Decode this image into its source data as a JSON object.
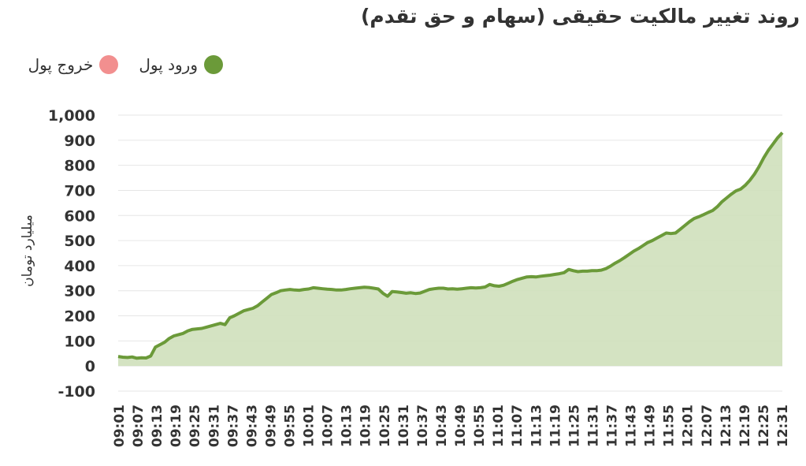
{
  "title": "روند تغییر مالکیت حقیقی (سهام و حق تقدم)",
  "legend": [
    {
      "label": "ورود پول",
      "color": "#6b9a39"
    },
    {
      "label": "خروج پول",
      "color": "#f28f8f"
    }
  ],
  "colors": {
    "line": "#6b9a39",
    "area": "#cfe0bb",
    "gridline": "#e6e6e6"
  },
  "chart_data": {
    "type": "area",
    "ylabel": "میلیارد تومان",
    "ylim": [
      -100,
      1000
    ],
    "yticks": [
      "-100",
      "0",
      "100",
      "200",
      "300",
      "400",
      "500",
      "600",
      "700",
      "800",
      "900",
      "1,000"
    ],
    "ytick_values": [
      -100,
      0,
      100,
      200,
      300,
      400,
      500,
      600,
      700,
      800,
      900,
      1000
    ],
    "xticks": [
      "09:01",
      "09:07",
      "09:13",
      "09:19",
      "09:25",
      "09:31",
      "09:37",
      "09:43",
      "09:49",
      "09:55",
      "10:01",
      "10:07",
      "10:13",
      "10:19",
      "10:25",
      "10:31",
      "10:37",
      "10:43",
      "10:49",
      "10:55",
      "11:01",
      "11:07",
      "11:13",
      "11:19",
      "11:25",
      "11:31",
      "11:37",
      "11:43",
      "11:49",
      "11:55",
      "12:01",
      "12:07",
      "12:13",
      "12:19",
      "12:25",
      "12:31"
    ],
    "series": [
      {
        "values": [
          [
            0,
            38
          ],
          [
            1,
            35
          ],
          [
            2,
            34
          ],
          [
            3,
            36
          ],
          [
            4,
            31
          ],
          [
            5,
            33
          ],
          [
            6,
            32
          ],
          [
            7,
            40
          ],
          [
            8,
            75
          ],
          [
            9,
            85
          ],
          [
            10,
            95
          ],
          [
            11,
            110
          ],
          [
            12,
            120
          ],
          [
            13,
            125
          ],
          [
            14,
            130
          ],
          [
            15,
            140
          ],
          [
            16,
            146
          ],
          [
            17,
            148
          ],
          [
            18,
            150
          ],
          [
            19,
            155
          ],
          [
            20,
            160
          ],
          [
            21,
            165
          ],
          [
            22,
            170
          ],
          [
            23,
            165
          ],
          [
            24,
            192
          ],
          [
            25,
            200
          ],
          [
            26,
            210
          ],
          [
            27,
            220
          ],
          [
            28,
            225
          ],
          [
            29,
            230
          ],
          [
            30,
            240
          ],
          [
            31,
            255
          ],
          [
            32,
            270
          ],
          [
            33,
            285
          ],
          [
            34,
            292
          ],
          [
            35,
            300
          ],
          [
            36,
            303
          ],
          [
            37,
            305
          ],
          [
            38,
            303
          ],
          [
            39,
            302
          ],
          [
            40,
            305
          ],
          [
            41,
            307
          ],
          [
            42,
            312
          ],
          [
            43,
            310
          ],
          [
            44,
            308
          ],
          [
            45,
            306
          ],
          [
            46,
            305
          ],
          [
            47,
            303
          ],
          [
            48,
            303
          ],
          [
            49,
            305
          ],
          [
            50,
            308
          ],
          [
            51,
            310
          ],
          [
            52,
            312
          ],
          [
            53,
            314
          ],
          [
            54,
            313
          ],
          [
            55,
            310
          ],
          [
            56,
            307
          ],
          [
            57,
            290
          ],
          [
            58,
            278
          ],
          [
            59,
            297
          ],
          [
            60,
            295
          ],
          [
            61,
            293
          ],
          [
            62,
            290
          ],
          [
            63,
            292
          ],
          [
            64,
            289
          ],
          [
            65,
            291
          ],
          [
            66,
            298
          ],
          [
            67,
            305
          ],
          [
            68,
            308
          ],
          [
            69,
            310
          ],
          [
            70,
            310
          ],
          [
            71,
            307
          ],
          [
            72,
            308
          ],
          [
            73,
            306
          ],
          [
            74,
            308
          ],
          [
            75,
            310
          ],
          [
            76,
            312
          ],
          [
            77,
            311
          ],
          [
            78,
            312
          ],
          [
            79,
            315
          ],
          [
            80,
            325
          ],
          [
            81,
            320
          ],
          [
            82,
            318
          ],
          [
            83,
            322
          ],
          [
            84,
            330
          ],
          [
            85,
            338
          ],
          [
            86,
            345
          ],
          [
            87,
            350
          ],
          [
            88,
            355
          ],
          [
            89,
            356
          ],
          [
            90,
            355
          ],
          [
            91,
            358
          ],
          [
            92,
            360
          ],
          [
            93,
            362
          ],
          [
            94,
            365
          ],
          [
            95,
            368
          ],
          [
            96,
            372
          ],
          [
            97,
            385
          ],
          [
            98,
            380
          ],
          [
            99,
            376
          ],
          [
            100,
            378
          ],
          [
            101,
            378
          ],
          [
            102,
            380
          ],
          [
            103,
            380
          ],
          [
            104,
            382
          ],
          [
            105,
            388
          ],
          [
            106,
            398
          ],
          [
            107,
            410
          ],
          [
            108,
            420
          ],
          [
            109,
            432
          ],
          [
            110,
            445
          ],
          [
            111,
            458
          ],
          [
            112,
            468
          ],
          [
            113,
            480
          ],
          [
            114,
            492
          ],
          [
            115,
            500
          ],
          [
            116,
            510
          ],
          [
            117,
            520
          ],
          [
            118,
            530
          ],
          [
            119,
            528
          ],
          [
            120,
            530
          ],
          [
            121,
            545
          ],
          [
            122,
            560
          ],
          [
            123,
            575
          ],
          [
            124,
            588
          ],
          [
            125,
            595
          ],
          [
            126,
            603
          ],
          [
            127,
            612
          ],
          [
            128,
            620
          ],
          [
            129,
            635
          ],
          [
            130,
            655
          ],
          [
            131,
            670
          ],
          [
            132,
            685
          ],
          [
            133,
            698
          ],
          [
            134,
            705
          ],
          [
            135,
            720
          ],
          [
            136,
            740
          ],
          [
            137,
            765
          ],
          [
            138,
            795
          ],
          [
            139,
            830
          ],
          [
            140,
            860
          ],
          [
            141,
            885
          ],
          [
            142,
            910
          ],
          [
            143,
            930
          ]
        ]
      }
    ]
  }
}
